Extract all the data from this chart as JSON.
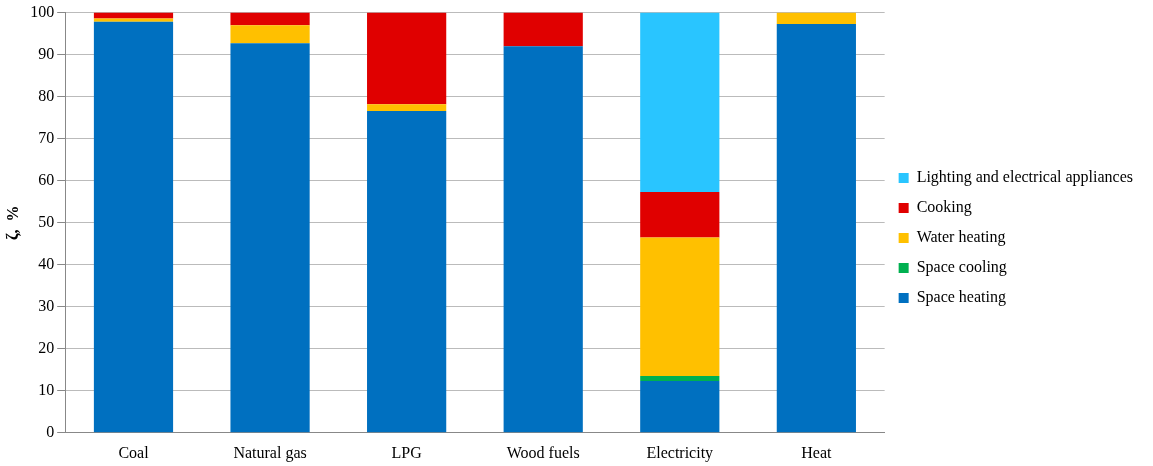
{
  "chart_data": {
    "type": "bar",
    "stacked": true,
    "ylabel": "ζ,  %",
    "categories": [
      "Coal",
      "Natural gas",
      "LPG",
      "Wood fuels",
      "Electricity",
      "Heat"
    ],
    "series": [
      {
        "name": "Space heating",
        "color": "#0070c0",
        "values": [
          97.8,
          92.7,
          76.6,
          92.0,
          12.3,
          97.3
        ]
      },
      {
        "name": "Space cooling",
        "color": "#00b050",
        "values": [
          0,
          0,
          0,
          0,
          1.2,
          0
        ]
      },
      {
        "name": "Water heating",
        "color": "#ffc000",
        "values": [
          0.8,
          4.3,
          1.6,
          0,
          33.0,
          2.7
        ]
      },
      {
        "name": "Cooking",
        "color": "#e00000",
        "values": [
          1.4,
          3.0,
          21.8,
          8.0,
          10.8,
          0
        ]
      },
      {
        "name": "Lighting and electrical appliances",
        "color": "#29c5ff",
        "values": [
          0,
          0,
          0,
          0,
          42.7,
          0
        ]
      }
    ],
    "ylim": [
      0,
      100
    ],
    "yticks": [
      0,
      10,
      20,
      30,
      40,
      50,
      60,
      70,
      80,
      90,
      100
    ],
    "grid": "y",
    "legend": "right"
  }
}
